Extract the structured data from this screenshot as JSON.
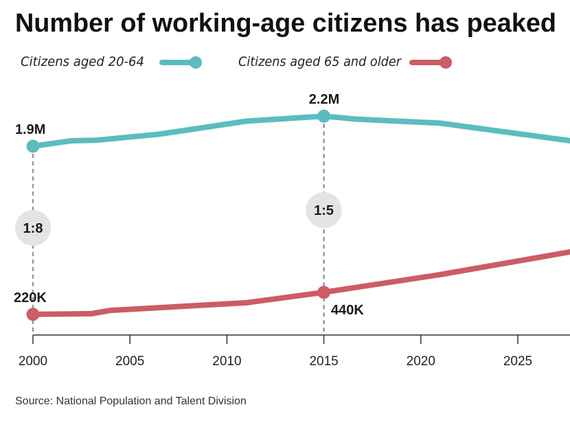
{
  "chart_data": {
    "type": "line",
    "title": "Number of working-age citizens has peaked",
    "source": "Source: National Population and Talent Division",
    "xlabel": "",
    "ylabel": "",
    "xlim": [
      2000,
      2027.7
    ],
    "xticks": [
      "2000",
      "2005",
      "2010",
      "2015",
      "2020",
      "2025"
    ],
    "grid": false,
    "legend_placement": "top-left",
    "series": [
      {
        "name": "Citizens aged 20-64",
        "color": "#5bbcc0",
        "x": [
          2000,
          2002,
          2003.3,
          2006.5,
          2011,
          2015,
          2016.7,
          2021,
          2027.7
        ],
        "y": [
          1.9,
          1.955,
          1.96,
          2.02,
          2.15,
          2.2,
          2.17,
          2.13,
          1.955
        ]
      },
      {
        "name": "Citizens aged 65 and older",
        "color": "#cc5c66",
        "x": [
          2000,
          2003,
          2004,
          2011,
          2015,
          2021,
          2027.7
        ],
        "y": [
          0.22,
          0.226,
          0.26,
          0.336,
          0.44,
          0.617,
          0.844
        ]
      }
    ],
    "annotations": [
      {
        "text": "1.9M",
        "x": 2000,
        "series": 0
      },
      {
        "text": "2.2M",
        "x": 2015,
        "series": 0
      },
      {
        "text": "220K",
        "x": 2000,
        "series": 1
      },
      {
        "text": "440K",
        "x": 2015,
        "series": 1
      },
      {
        "text": "1:8",
        "x": 2000,
        "type": "ratio"
      },
      {
        "text": "1:5",
        "x": 2015,
        "type": "ratio"
      }
    ]
  }
}
